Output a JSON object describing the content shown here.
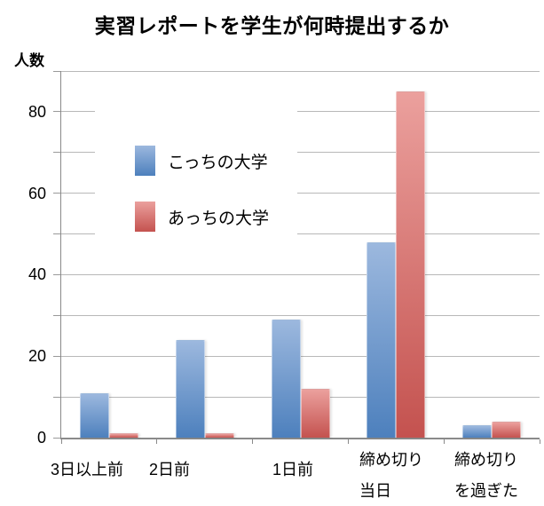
{
  "chart_title": "実習レポートを学生が何時提出するか",
  "y_axis_title": "人数",
  "chart_data": {
    "type": "bar",
    "title": "実習レポートを学生が何時提出するか",
    "ylabel": "人数",
    "xlabel": "",
    "categories": [
      "3日以上前",
      "2日前",
      "1日前",
      "締め切り\n当日",
      "締め切り\nを過ぎた"
    ],
    "series": [
      {
        "name": "こっちの大学",
        "values": [
          11,
          24,
          29,
          48,
          3
        ],
        "color": "#4f81bd",
        "color_top": "#9cb8de",
        "color_bottom": "#4d80bd"
      },
      {
        "name": "あっちの大学",
        "values": [
          1,
          1,
          12,
          85,
          4
        ],
        "color": "#c0504d",
        "color_top": "#eba09d",
        "color_bottom": "#c4524f"
      }
    ],
    "ylim": [
      0,
      90
    ],
    "grid_step": 10,
    "y_tick_values": [
      0,
      20,
      40,
      60,
      80
    ],
    "grid_on": true,
    "legend_position": "upper-left-inside",
    "colors": {
      "gridline": "#b8b8b8",
      "axis": "#8a8a8a",
      "text": "#000000",
      "background": "#ffffff"
    }
  }
}
